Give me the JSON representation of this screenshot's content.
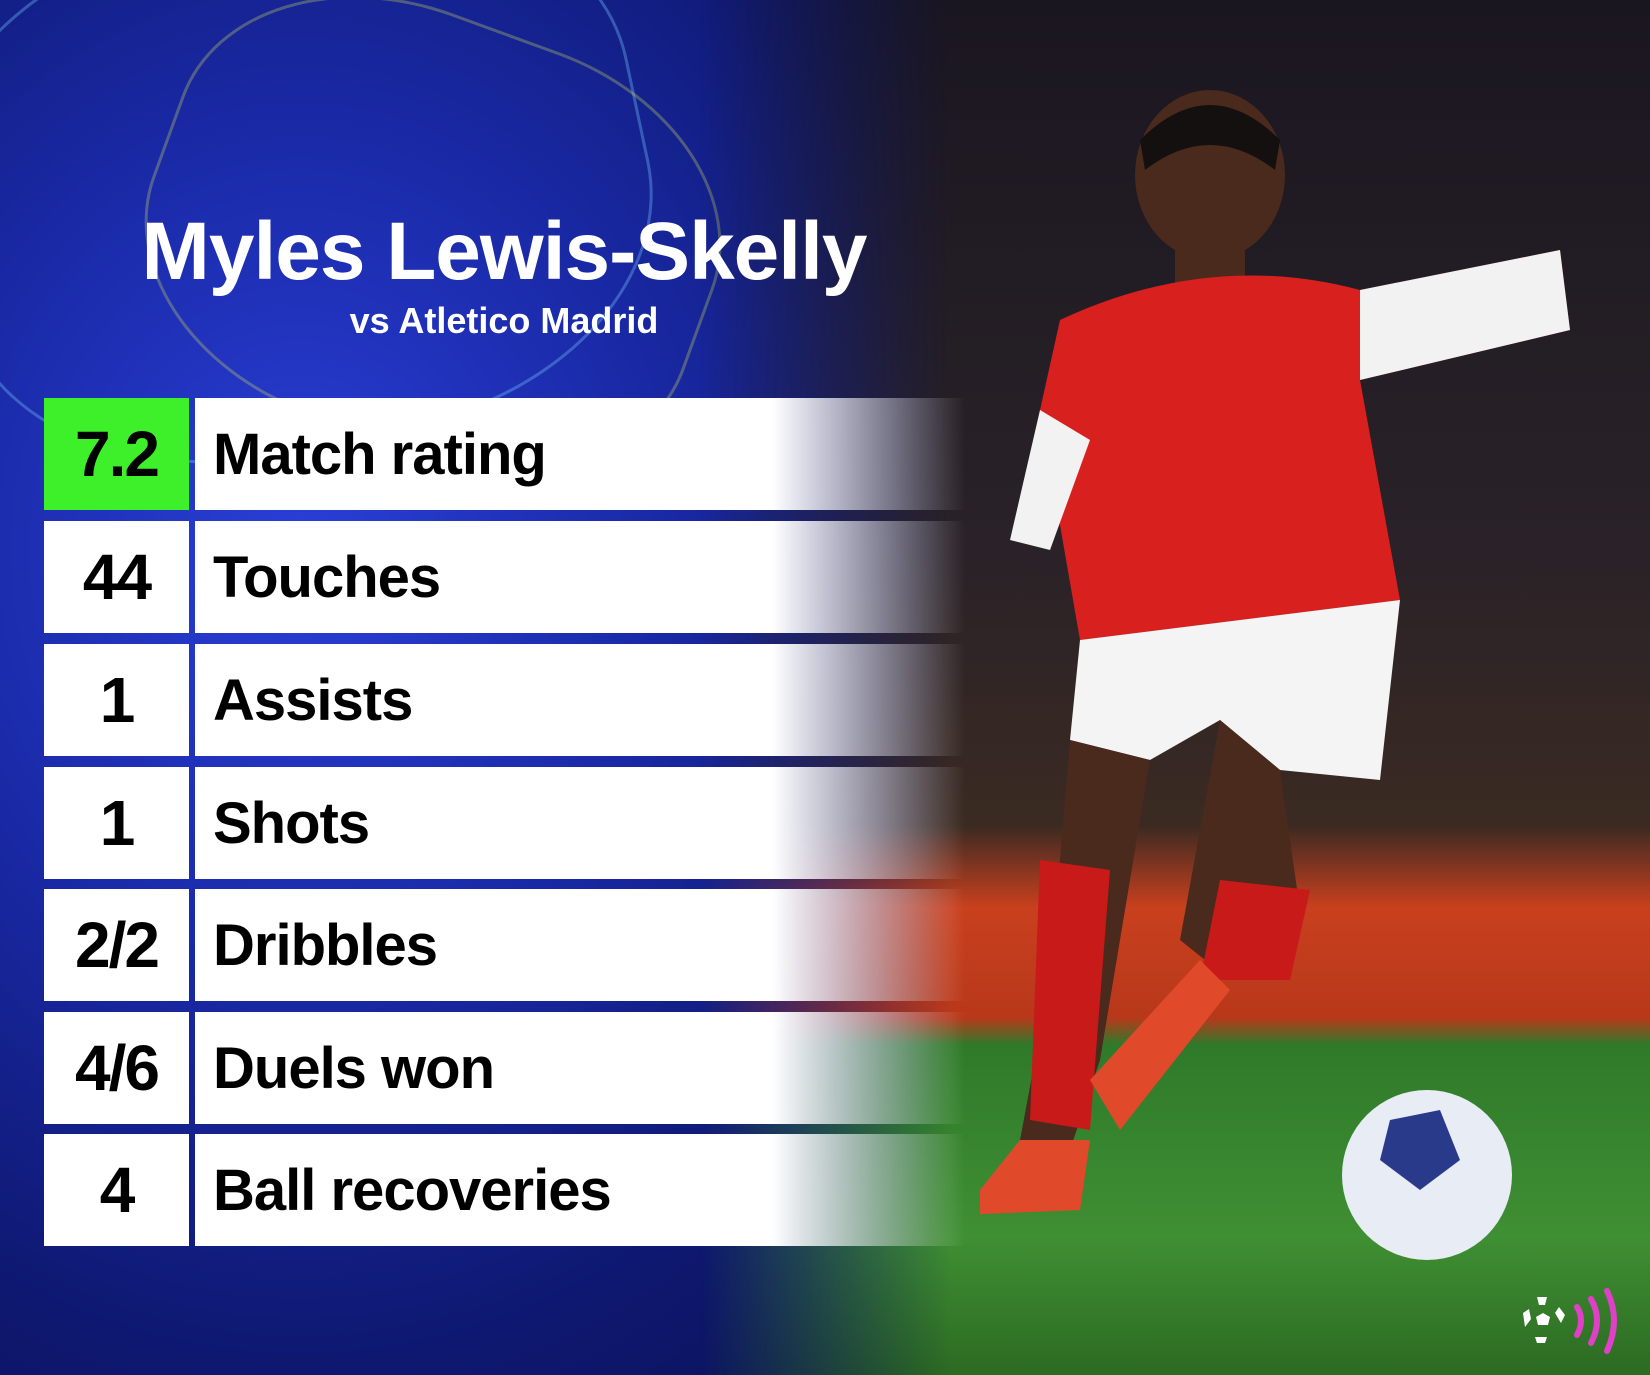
{
  "header": {
    "title": "Myles Lewis-Skelly",
    "subtitle": "vs Atletico Madrid"
  },
  "stats": [
    {
      "value": "7.2",
      "label": "Match rating",
      "highlight": true
    },
    {
      "value": "44",
      "label": "Touches"
    },
    {
      "value": "1",
      "label": "Assists"
    },
    {
      "value": "1",
      "label": "Shots"
    },
    {
      "value": "2/2",
      "label": "Dribbles"
    },
    {
      "value": "4/6",
      "label": "Duels won"
    },
    {
      "value": "4",
      "label": "Ball recoveries"
    }
  ],
  "colors": {
    "highlight": "#3df02a",
    "background": "#1a2aa8",
    "logo": "#e040c8"
  },
  "icons": {
    "logo": "football-broadcast-logo"
  }
}
